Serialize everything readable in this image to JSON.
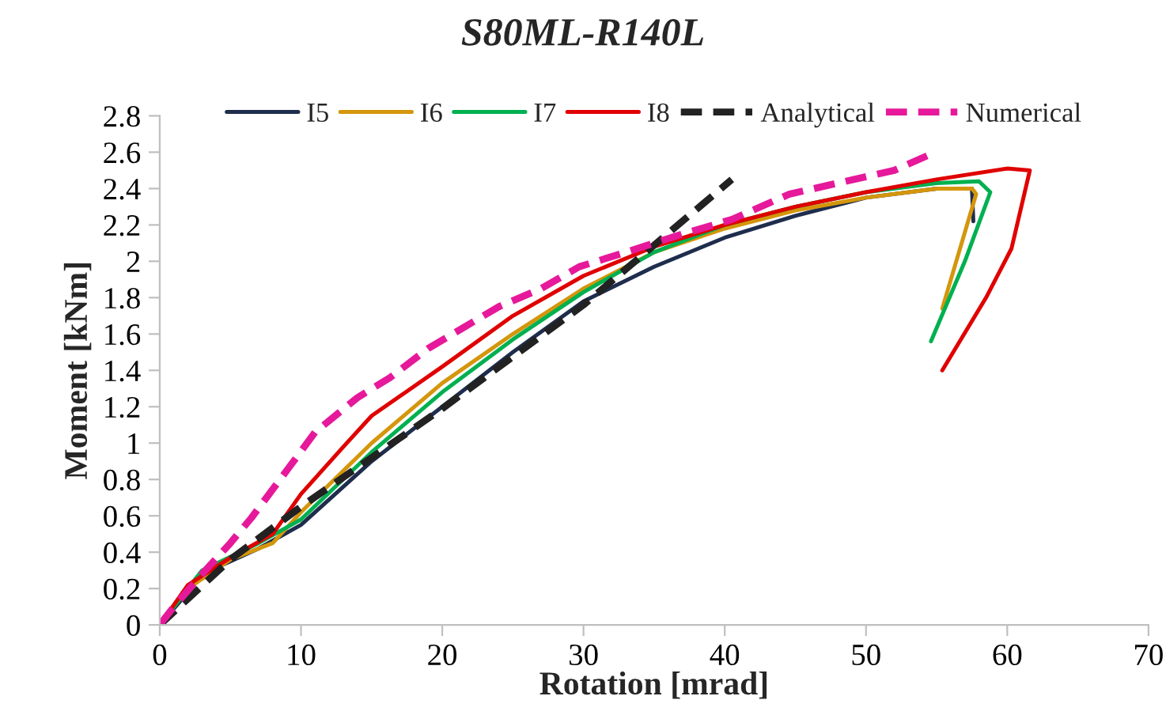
{
  "chart_data": {
    "type": "line",
    "title": "S80ML-R140L",
    "xlabel": "Rotation [mrad]",
    "ylabel": "Moment [kNm]",
    "xlim": [
      0,
      70
    ],
    "xticks": [
      0,
      10,
      20,
      30,
      40,
      50,
      60,
      70
    ],
    "ylim": [
      0,
      2.8
    ],
    "yticks": [
      0,
      0.2,
      0.4,
      0.6,
      0.8,
      1,
      1.2,
      1.4,
      1.6,
      1.8,
      2,
      2.2,
      2.4,
      2.6,
      2.8
    ],
    "grid": false,
    "legend": "top",
    "marker": "none",
    "series": [
      {
        "name": "I5",
        "color": "#1f2d4d",
        "line_style": "solid",
        "x": [
          0,
          2,
          3,
          5,
          7,
          10,
          15,
          20,
          25,
          30,
          35,
          40,
          45,
          50,
          55,
          57.5,
          57.6
        ],
        "values": [
          0,
          0.18,
          0.28,
          0.35,
          0.42,
          0.55,
          0.9,
          1.2,
          1.5,
          1.78,
          1.97,
          2.13,
          2.25,
          2.35,
          2.4,
          2.4,
          2.22
        ]
      },
      {
        "name": "I6",
        "color": "#d4960c",
        "line_style": "solid",
        "x": [
          0,
          2,
          5,
          8,
          10,
          15,
          20,
          25,
          30,
          35,
          40,
          45,
          50,
          55,
          57.5,
          57.8,
          55.4
        ],
        "values": [
          0,
          0.2,
          0.36,
          0.45,
          0.62,
          1.0,
          1.33,
          1.6,
          1.85,
          2.05,
          2.18,
          2.28,
          2.35,
          2.4,
          2.4,
          2.37,
          1.74
        ]
      },
      {
        "name": "I7",
        "color": "#00b050",
        "line_style": "solid",
        "x": [
          0,
          3,
          7,
          10,
          15,
          20,
          25,
          30,
          35,
          40,
          45,
          50,
          55,
          58,
          58.8,
          57,
          54.6
        ],
        "values": [
          0,
          0.3,
          0.45,
          0.58,
          0.95,
          1.28,
          1.57,
          1.83,
          2.05,
          2.2,
          2.3,
          2.38,
          2.43,
          2.44,
          2.38,
          2.0,
          1.56
        ]
      },
      {
        "name": "I8",
        "color": "#e00000",
        "line_style": "solid",
        "x": [
          0,
          2,
          5,
          8,
          10,
          13,
          15,
          20,
          25,
          30,
          35,
          40,
          45,
          50,
          55,
          60,
          61.6,
          60.3,
          58.5,
          55.4
        ],
        "values": [
          0,
          0.22,
          0.37,
          0.5,
          0.72,
          0.98,
          1.15,
          1.42,
          1.7,
          1.92,
          2.08,
          2.2,
          2.3,
          2.38,
          2.45,
          2.51,
          2.5,
          2.07,
          1.8,
          1.4
        ]
      },
      {
        "name": "Analytical",
        "color": "#222222",
        "line_style": "dashed",
        "x": [
          0,
          5,
          10,
          20,
          30,
          40.5
        ],
        "values": [
          0,
          0.36,
          0.65,
          1.19,
          1.76,
          2.45
        ]
      },
      {
        "name": "Numerical",
        "color": "#e6199b",
        "line_style": "dashed",
        "x": [
          0,
          1,
          3,
          5,
          6.5,
          9,
          11,
          14,
          16.3,
          19,
          24,
          27,
          29.7,
          33,
          37,
          40.5,
          44.6,
          48,
          52,
          54.6
        ],
        "values": [
          0,
          0.1,
          0.28,
          0.45,
          0.59,
          0.85,
          1.06,
          1.25,
          1.36,
          1.52,
          1.75,
          1.85,
          1.97,
          2.05,
          2.15,
          2.23,
          2.37,
          2.43,
          2.5,
          2.59
        ]
      }
    ]
  }
}
